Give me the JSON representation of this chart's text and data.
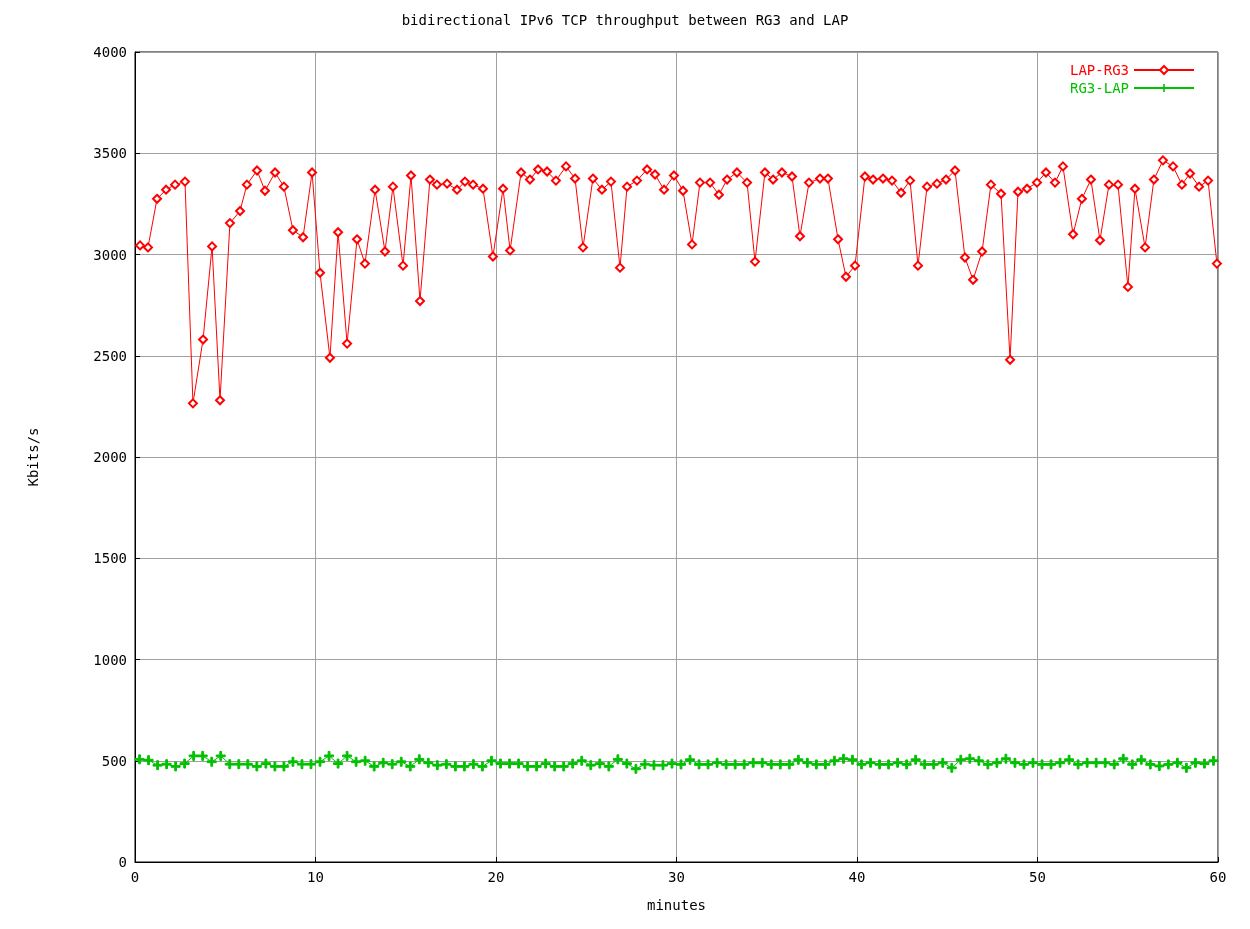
{
  "chart_data": {
    "type": "line",
    "title": "bidirectional IPv6 TCP throughput between RG3 and LAP",
    "xlabel": "minutes",
    "ylabel": "Kbits/s",
    "xlim": [
      0,
      60
    ],
    "xticks": [
      0,
      10,
      20,
      30,
      40,
      50,
      60
    ],
    "ylim": [
      0,
      4000
    ],
    "yticks": [
      0,
      500,
      1000,
      1500,
      2000,
      2500,
      3000,
      3500,
      4000
    ],
    "grid": true,
    "legend": "top right",
    "line_style": "solid",
    "series": [
      {
        "name": "LAP-RG3",
        "color": "#ff0000",
        "marker": "diamond",
        "x": [
          0.28,
          0.72,
          1.22,
          1.72,
          2.22,
          2.77,
          3.21,
          3.77,
          4.27,
          4.71,
          5.26,
          5.82,
          6.2,
          6.76,
          7.2,
          7.76,
          8.25,
          8.75,
          9.31,
          9.81,
          10.25,
          10.8,
          11.25,
          11.75,
          12.3,
          12.74,
          13.3,
          13.85,
          14.29,
          14.85,
          15.29,
          15.79,
          16.34,
          16.73,
          17.29,
          17.84,
          18.28,
          18.73,
          19.28,
          19.83,
          20.39,
          20.78,
          21.39,
          21.88,
          22.33,
          22.83,
          23.32,
          23.88,
          24.38,
          24.82,
          25.37,
          25.87,
          26.37,
          26.87,
          27.26,
          27.81,
          28.37,
          28.81,
          29.31,
          29.86,
          30.36,
          30.86,
          31.3,
          31.86,
          32.35,
          32.8,
          33.35,
          33.91,
          34.35,
          34.9,
          35.35,
          35.84,
          36.4,
          36.84,
          37.34,
          37.95,
          38.39,
          38.95,
          39.39,
          39.89,
          40.44,
          40.89,
          41.44,
          41.94,
          42.44,
          42.94,
          43.38,
          43.88,
          44.43,
          44.93,
          45.43,
          45.98,
          46.43,
          46.93,
          47.42,
          47.98,
          48.48,
          48.92,
          49.42,
          49.97,
          50.47,
          50.97,
          51.41,
          51.97,
          52.46,
          52.96,
          53.46,
          53.96,
          54.46,
          55.01,
          55.4,
          55.96,
          56.45,
          56.95,
          57.51,
          58.0,
          58.45,
          58.95,
          59.45,
          59.94
        ],
        "values": [
          3045,
          3035,
          3275,
          3320,
          3345,
          3360,
          2265,
          2580,
          3040,
          2280,
          3155,
          3215,
          3345,
          3415,
          3315,
          3405,
          3335,
          3120,
          3085,
          3405,
          2910,
          2490,
          3110,
          2560,
          3075,
          2955,
          3320,
          3015,
          3335,
          2945,
          3390,
          2770,
          3370,
          3345,
          3350,
          3320,
          3360,
          3345,
          3325,
          2990,
          3325,
          3020,
          3405,
          3370,
          3420,
          3410,
          3365,
          3435,
          3375,
          3035,
          3375,
          3320,
          3360,
          2935,
          3335,
          3365,
          3420,
          3395,
          3320,
          3390,
          3315,
          3050,
          3355,
          3355,
          3295,
          3370,
          3405,
          3355,
          2965,
          3405,
          3370,
          3405,
          3385,
          3090,
          3355,
          3375,
          3375,
          3075,
          2890,
          2945,
          3385,
          3370,
          3375,
          3365,
          3305,
          3365,
          2945,
          3335,
          3350,
          3370,
          3415,
          2985,
          2875,
          3015,
          3345,
          3300,
          2480,
          3310,
          3325,
          3355,
          3405,
          3355,
          3435,
          3100,
          3275,
          3370,
          3070,
          3345,
          3345,
          2840,
          3325,
          3035,
          3370,
          3465,
          3435,
          3345,
          3400,
          3335,
          3365,
          2955
        ]
      },
      {
        "name": "RG3-LAP",
        "color": "#00c000",
        "marker": "cross",
        "x": [
          0.25,
          0.75,
          1.25,
          1.75,
          2.25,
          2.75,
          3.25,
          3.75,
          4.25,
          4.75,
          5.25,
          5.75,
          6.25,
          6.75,
          7.25,
          7.75,
          8.25,
          8.75,
          9.25,
          9.75,
          10.25,
          10.75,
          11.25,
          11.75,
          12.25,
          12.75,
          13.25,
          13.75,
          14.25,
          14.75,
          15.25,
          15.75,
          16.25,
          16.75,
          17.25,
          17.75,
          18.25,
          18.75,
          19.25,
          19.75,
          20.25,
          20.75,
          21.25,
          21.75,
          22.25,
          22.75,
          23.25,
          23.75,
          24.25,
          24.75,
          25.25,
          25.75,
          26.25,
          26.75,
          27.25,
          27.75,
          28.25,
          28.75,
          29.25,
          29.75,
          30.25,
          30.75,
          31.25,
          31.75,
          32.25,
          32.75,
          33.25,
          33.75,
          34.25,
          34.75,
          35.25,
          35.75,
          36.25,
          36.75,
          37.25,
          37.75,
          38.25,
          38.75,
          39.25,
          39.75,
          40.25,
          40.75,
          41.25,
          41.75,
          42.25,
          42.75,
          43.25,
          43.75,
          44.25,
          44.75,
          45.25,
          45.75,
          46.25,
          46.75,
          47.25,
          47.75,
          48.25,
          48.75,
          49.25,
          49.75,
          50.25,
          50.75,
          51.25,
          51.75,
          52.25,
          52.75,
          53.25,
          53.75,
          54.25,
          54.75,
          55.25,
          55.75,
          56.25,
          56.75,
          57.25,
          57.75,
          58.25,
          58.75,
          59.25,
          59.75
        ],
        "values": [
          507,
          503,
          478,
          483,
          472,
          486,
          524,
          524,
          495,
          524,
          483,
          483,
          483,
          472,
          486,
          472,
          472,
          495,
          483,
          483,
          495,
          524,
          486,
          524,
          495,
          500,
          472,
          490,
          483,
          495,
          472,
          507,
          490,
          478,
          483,
          472,
          472,
          483,
          472,
          500,
          486,
          486,
          486,
          472,
          472,
          486,
          472,
          472,
          486,
          500,
          478,
          486,
          472,
          507,
          486,
          460,
          483,
          478,
          478,
          486,
          482,
          505,
          482,
          482,
          490,
          482,
          482,
          482,
          490,
          490,
          482,
          482,
          482,
          505,
          490,
          482,
          482,
          500,
          510,
          505,
          482,
          490,
          482,
          482,
          490,
          482,
          505,
          482,
          482,
          490,
          465,
          505,
          510,
          500,
          482,
          490,
          510,
          490,
          482,
          490,
          482,
          482,
          490,
          505,
          482,
          490,
          490,
          490,
          482,
          510,
          482,
          505,
          482,
          474,
          482,
          490,
          465,
          490,
          486,
          500
        ]
      }
    ]
  }
}
